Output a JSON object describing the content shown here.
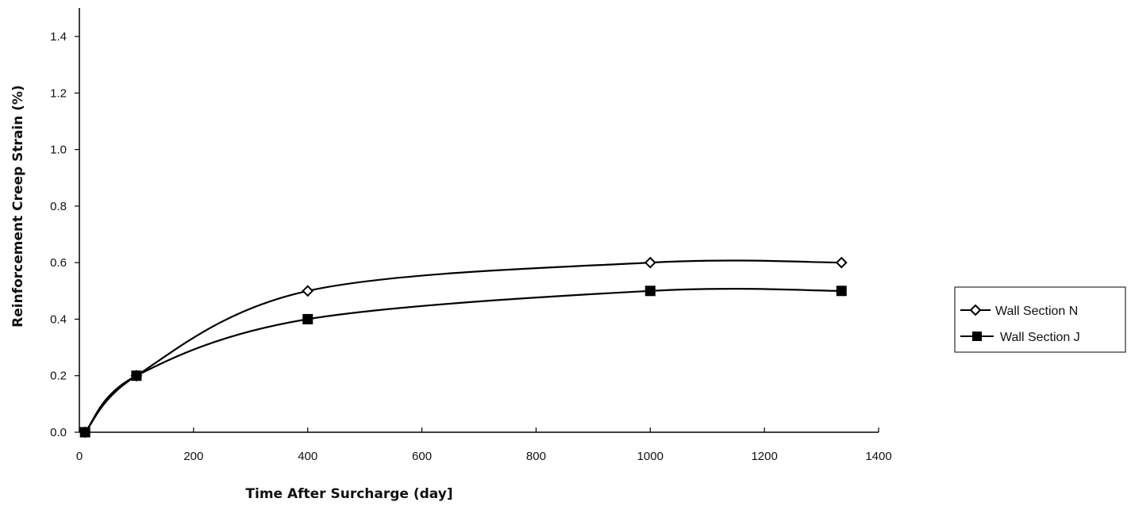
{
  "chart_data": {
    "type": "line",
    "xlabel": "Time After Surcharge (day]",
    "ylabel": "Reinforcement Creep Strain (%)",
    "xlim": [
      0,
      1400
    ],
    "ylim": [
      0,
      1.4
    ],
    "xticks": [
      0,
      200,
      400,
      600,
      800,
      1000,
      1200,
      1400
    ],
    "yticks": [
      0.0,
      0.2,
      0.4,
      0.6,
      0.8,
      1.0,
      1.2,
      1.4
    ],
    "ytick_labels": [
      "0.0",
      "0.2",
      "0.4",
      "0.6",
      "0.8",
      "1.0",
      "1.2",
      "1.4"
    ],
    "grid": false,
    "smooth": true,
    "legend_position": "right",
    "series": [
      {
        "name": "Wall Section N",
        "marker": "diamond-open",
        "color": "#000000",
        "x": [
          10,
          100,
          400,
          1000,
          1335
        ],
        "y": [
          0.0,
          0.2,
          0.5,
          0.6,
          0.6
        ]
      },
      {
        "name": "Wall Section J",
        "marker": "square-filled",
        "color": "#000000",
        "x": [
          10,
          100,
          400,
          1000,
          1335
        ],
        "y": [
          0.0,
          0.2,
          0.4,
          0.5,
          0.5
        ]
      }
    ]
  }
}
